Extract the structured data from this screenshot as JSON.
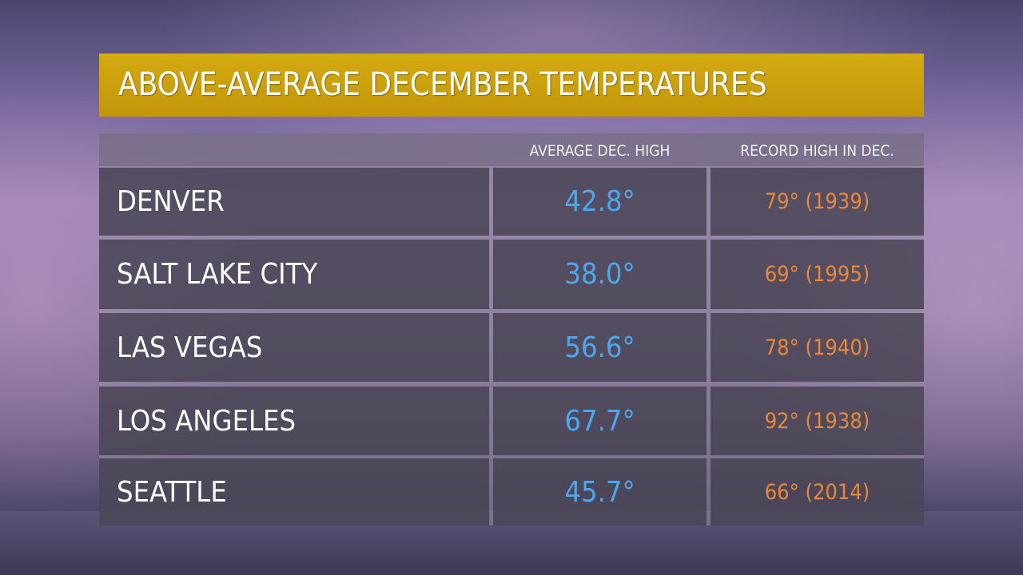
{
  "chart_data": {
    "type": "table",
    "title": "ABOVE-AVERAGE DECEMBER TEMPERATURES",
    "columns": [
      "",
      "AVERAGE DEC. HIGH",
      "RECORD HIGH IN DEC."
    ],
    "rows": [
      {
        "city": "DENVER",
        "avg_high": "42.8°",
        "record_high": "79° (1939)"
      },
      {
        "city": "SALT LAKE CITY",
        "avg_high": "38.0°",
        "record_high": "69° (1995)"
      },
      {
        "city": "LAS VEGAS",
        "avg_high": "56.6°",
        "record_high": "78° (1940)"
      },
      {
        "city": "LOS ANGELES",
        "avg_high": "67.7°",
        "record_high": "92° (1938)"
      },
      {
        "city": "SEATTLE",
        "avg_high": "45.7°",
        "record_high": "66° (2014)"
      }
    ],
    "colors": {
      "title_bar": "#c9a00e",
      "avg": "#4aa8f0",
      "record": "#e8883a"
    }
  }
}
